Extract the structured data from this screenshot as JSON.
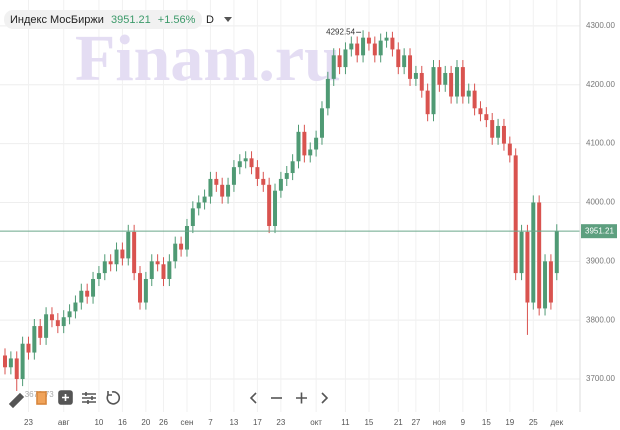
{
  "chart_data": {
    "type": "candlestick",
    "title": "Индекс МосБиржи",
    "change": "+1.56%",
    "interval": "D",
    "watermark": "Finam.ru",
    "last_price": 3951.21,
    "up_color": "#4f9a74",
    "down_color": "#d9534f",
    "ylim": [
      3644,
      4344
    ],
    "yticks": [
      {
        "value": 3700,
        "label": "3700.00"
      },
      {
        "value": 3800,
        "label": "3800.00"
      },
      {
        "value": 3900,
        "label": "3900.00"
      },
      {
        "value": 4000,
        "label": "4000.00"
      },
      {
        "value": 4100,
        "label": "4100.00"
      },
      {
        "value": 4200,
        "label": "4200.00"
      },
      {
        "value": 4300,
        "label": "4300.00"
      }
    ],
    "grid": true,
    "categories": [
      null,
      null,
      null,
      null,
      "23",
      null,
      null,
      null,
      null,
      null,
      "авг",
      null,
      null,
      null,
      null,
      null,
      "10",
      null,
      null,
      null,
      "16",
      null,
      null,
      null,
      "20",
      null,
      null,
      "26",
      null,
      null,
      null,
      "сен",
      null,
      null,
      null,
      "7",
      null,
      null,
      null,
      "13",
      null,
      null,
      null,
      "17",
      null,
      null,
      null,
      "23",
      null,
      null,
      null,
      null,
      null,
      "окт",
      null,
      null,
      null,
      null,
      "11",
      null,
      null,
      null,
      "15",
      null,
      null,
      null,
      null,
      "21",
      null,
      null,
      "27",
      null,
      null,
      null,
      "ноя",
      null,
      null,
      null,
      "9",
      null,
      null,
      null,
      "15",
      null,
      null,
      null,
      "19",
      null,
      null,
      null,
      "25",
      null,
      null,
      null,
      "дек"
    ],
    "open": [
      3740,
      3720,
      3735,
      3700,
      3760,
      3745,
      3790,
      3770,
      3810,
      3800,
      3790,
      3805,
      3815,
      3830,
      3850,
      3840,
      3870,
      3880,
      3900,
      3895,
      3920,
      3905,
      3950,
      3880,
      3830,
      3870,
      3900,
      3895,
      3870,
      3900,
      3930,
      3920,
      3960,
      3990,
      4000,
      4010,
      4040,
      4030,
      4010,
      4030,
      4060,
      4070,
      4075,
      4060,
      4040,
      4030,
      3960,
      4020,
      4040,
      4050,
      4070,
      4120,
      4080,
      4090,
      4110,
      4160,
      4210,
      4250,
      4230,
      4260,
      4270,
      4250,
      4280,
      4270,
      4250,
      4275,
      4280,
      4260,
      4230,
      4250,
      4210,
      4220,
      4190,
      4150,
      4230,
      4200,
      4220,
      4180,
      4230,
      4180,
      4190,
      4160,
      4150,
      4140,
      4110,
      4130,
      4100,
      4080,
      3880,
      3950,
      3830,
      4000,
      3820,
      3900,
      3880
    ],
    "high": [
      3752,
      3747,
      3747,
      3772,
      3772,
      3802,
      3802,
      3822,
      3822,
      3812,
      3817,
      3827,
      3842,
      3862,
      3862,
      3882,
      3892,
      3912,
      3912,
      3932,
      3932,
      3962,
      3962,
      3892,
      3882,
      3912,
      3912,
      3907,
      3912,
      3942,
      3942,
      3972,
      4002,
      4012,
      4022,
      4052,
      4052,
      4042,
      4042,
      4072,
      4082,
      4087,
      4087,
      4072,
      4052,
      4042,
      4032,
      4052,
      4062,
      4082,
      4132,
      4132,
      4102,
      4122,
      4172,
      4222,
      4262,
      4262,
      4272,
      4282,
      4282,
      4292.54,
      4290,
      4282,
      4287,
      4290,
      4290,
      4272,
      4262,
      4262,
      4232,
      4232,
      4202,
      4242,
      4242,
      4232,
      4232,
      4242,
      4242,
      4202,
      4202,
      4172,
      4162,
      4152,
      4142,
      4142,
      4112,
      4092,
      3962,
      3962,
      4012,
      4012,
      3912,
      3912,
      3963
    ],
    "low": [
      3708,
      3708,
      3679.73,
      3688,
      3733,
      3733,
      3758,
      3758,
      3788,
      3778,
      3778,
      3793,
      3803,
      3818,
      3828,
      3828,
      3858,
      3868,
      3883,
      3883,
      3893,
      3893,
      3868,
      3818,
      3818,
      3858,
      3883,
      3858,
      3858,
      3888,
      3908,
      3908,
      3948,
      3978,
      3988,
      3998,
      4018,
      3998,
      3998,
      4018,
      4048,
      4058,
      4048,
      4028,
      4018,
      3948,
      3948,
      4008,
      4028,
      4038,
      4058,
      4068,
      4068,
      4078,
      4098,
      4148,
      4198,
      4218,
      4218,
      4248,
      4238,
      4238,
      4258,
      4238,
      4238,
      4263,
      4248,
      4218,
      4218,
      4198,
      4198,
      4178,
      4138,
      4138,
      4188,
      4188,
      4168,
      4168,
      4168,
      4168,
      4148,
      4138,
      4128,
      4098,
      4098,
      4088,
      4068,
      3868,
      3868,
      3775,
      3818,
      3808,
      3808,
      3818,
      3868
    ],
    "close": [
      3720,
      3735,
      3700,
      3760,
      3745,
      3790,
      3770,
      3810,
      3800,
      3790,
      3805,
      3815,
      3830,
      3850,
      3840,
      3870,
      3880,
      3900,
      3895,
      3920,
      3905,
      3950,
      3880,
      3830,
      3870,
      3900,
      3895,
      3870,
      3900,
      3930,
      3920,
      3960,
      3990,
      4000,
      4010,
      4040,
      4030,
      4010,
      4030,
      4060,
      4070,
      4075,
      4060,
      4040,
      4030,
      3960,
      4020,
      4040,
      4050,
      4070,
      4120,
      4080,
      4090,
      4110,
      4160,
      4210,
      4250,
      4230,
      4260,
      4270,
      4250,
      4280,
      4270,
      4250,
      4275,
      4280,
      4260,
      4230,
      4250,
      4210,
      4220,
      4190,
      4150,
      4230,
      4200,
      4220,
      4180,
      4230,
      4180,
      4190,
      4160,
      4150,
      4140,
      4110,
      4130,
      4100,
      4080,
      3880,
      3950,
      3830,
      4000,
      3820,
      3900,
      3830,
      3951.21
    ]
  }
}
